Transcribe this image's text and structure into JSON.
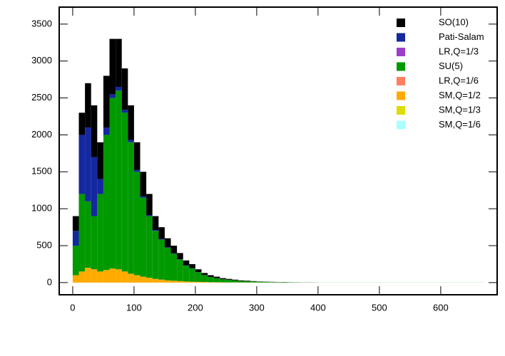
{
  "chart_data": {
    "type": "stacked-histogram",
    "bins": [
      0,
      10,
      20,
      30,
      40,
      50,
      60,
      70,
      80,
      90,
      100,
      110,
      120,
      130,
      140,
      150,
      160,
      170,
      180,
      190,
      200,
      210,
      220,
      230,
      240,
      250,
      260,
      270,
      280,
      290,
      300,
      310,
      320,
      330,
      340,
      350,
      360,
      370,
      380,
      390,
      400,
      670
    ],
    "series": [
      {
        "name": "SO(10)",
        "color": "#000000",
        "values": [
          200,
          300,
          600,
          700,
          500,
          700,
          750,
          650,
          560,
          470,
          375,
          330,
          285,
          188,
          160,
          122,
          104,
          85,
          66,
          57,
          38,
          28,
          24,
          19,
          14,
          11,
          9,
          8,
          7,
          5,
          4,
          3,
          3,
          2,
          2,
          1,
          1,
          1,
          1,
          1,
          0
        ]
      },
      {
        "name": "Pati-Salam",
        "color": "#1428a0",
        "values": [
          200,
          800,
          1000,
          800,
          200,
          100,
          50,
          50,
          40,
          30,
          25,
          20,
          15,
          12,
          10,
          8,
          6,
          5,
          4,
          3,
          2,
          2,
          1,
          1,
          1,
          1,
          1,
          0,
          0,
          0,
          0,
          0,
          0,
          0,
          0,
          0,
          0,
          0,
          0,
          0,
          0
        ]
      },
      {
        "name": "LR,Q=1/3",
        "color": "#9b3fc9",
        "values": [
          0,
          0,
          0,
          0,
          0,
          0,
          0,
          0,
          0,
          0,
          0,
          0,
          0,
          0,
          0,
          0,
          0,
          0,
          0,
          0,
          0,
          0,
          0,
          0,
          0,
          0,
          0,
          0,
          0,
          0,
          0,
          0,
          0,
          0,
          0,
          0,
          0,
          0,
          0,
          0,
          0
        ]
      },
      {
        "name": "SU(5)",
        "color": "#009900",
        "values": [
          400,
          1050,
          900,
          720,
          1050,
          1830,
          2310,
          2420,
          2150,
          1780,
          1400,
          1070,
          835,
          650,
          540,
          440,
          365,
          290,
          215,
          178,
          130,
          92,
          69,
          55,
          41,
          35,
          27,
          20,
          16,
          13,
          10,
          8,
          6,
          5,
          6,
          4,
          3,
          2,
          2,
          1,
          1
        ]
      },
      {
        "name": "LR,Q=1/6",
        "color": "#ff7f60",
        "values": [
          0,
          0,
          0,
          0,
          0,
          0,
          0,
          0,
          0,
          0,
          0,
          0,
          0,
          0,
          0,
          0,
          0,
          0,
          0,
          0,
          0,
          0,
          0,
          0,
          0,
          0,
          0,
          0,
          0,
          0,
          0,
          0,
          0,
          0,
          0,
          0,
          0,
          0,
          0,
          0,
          0
        ]
      },
      {
        "name": "SM,Q=1/2",
        "color": "#ffaa00",
        "values": [
          100,
          150,
          200,
          180,
          150,
          170,
          190,
          180,
          150,
          120,
          100,
          80,
          65,
          50,
          40,
          30,
          25,
          20,
          15,
          12,
          10,
          8,
          6,
          5,
          4,
          3,
          3,
          2,
          2,
          2,
          1,
          1,
          1,
          1,
          0,
          0,
          0,
          0,
          0,
          0,
          0
        ]
      },
      {
        "name": "SM,Q=1/3",
        "color": "#dddd00",
        "values": [
          0,
          0,
          0,
          0,
          0,
          0,
          0,
          0,
          0,
          0,
          0,
          0,
          0,
          0,
          0,
          0,
          0,
          0,
          0,
          0,
          0,
          0,
          0,
          0,
          0,
          0,
          0,
          0,
          0,
          0,
          0,
          0,
          0,
          0,
          0,
          0,
          0,
          0,
          0,
          0,
          0
        ]
      },
      {
        "name": "SM,Q=1/6",
        "color": "#aaffff",
        "values": [
          0,
          0,
          0,
          0,
          0,
          0,
          0,
          0,
          0,
          0,
          0,
          0,
          0,
          0,
          0,
          0,
          0,
          0,
          0,
          0,
          0,
          0,
          0,
          0,
          0,
          0,
          0,
          0,
          0,
          0,
          0,
          0,
          0,
          0,
          0,
          0,
          0,
          0,
          0,
          0,
          0
        ]
      }
    ],
    "xlim": [
      -22,
      692
    ],
    "ylim": [
      -165,
      3730
    ],
    "xticks": [
      0,
      100,
      200,
      300,
      400,
      500,
      600
    ],
    "yticks": [
      0,
      500,
      1000,
      1500,
      2000,
      2500,
      3000,
      3500
    ],
    "legend": "top-right"
  }
}
